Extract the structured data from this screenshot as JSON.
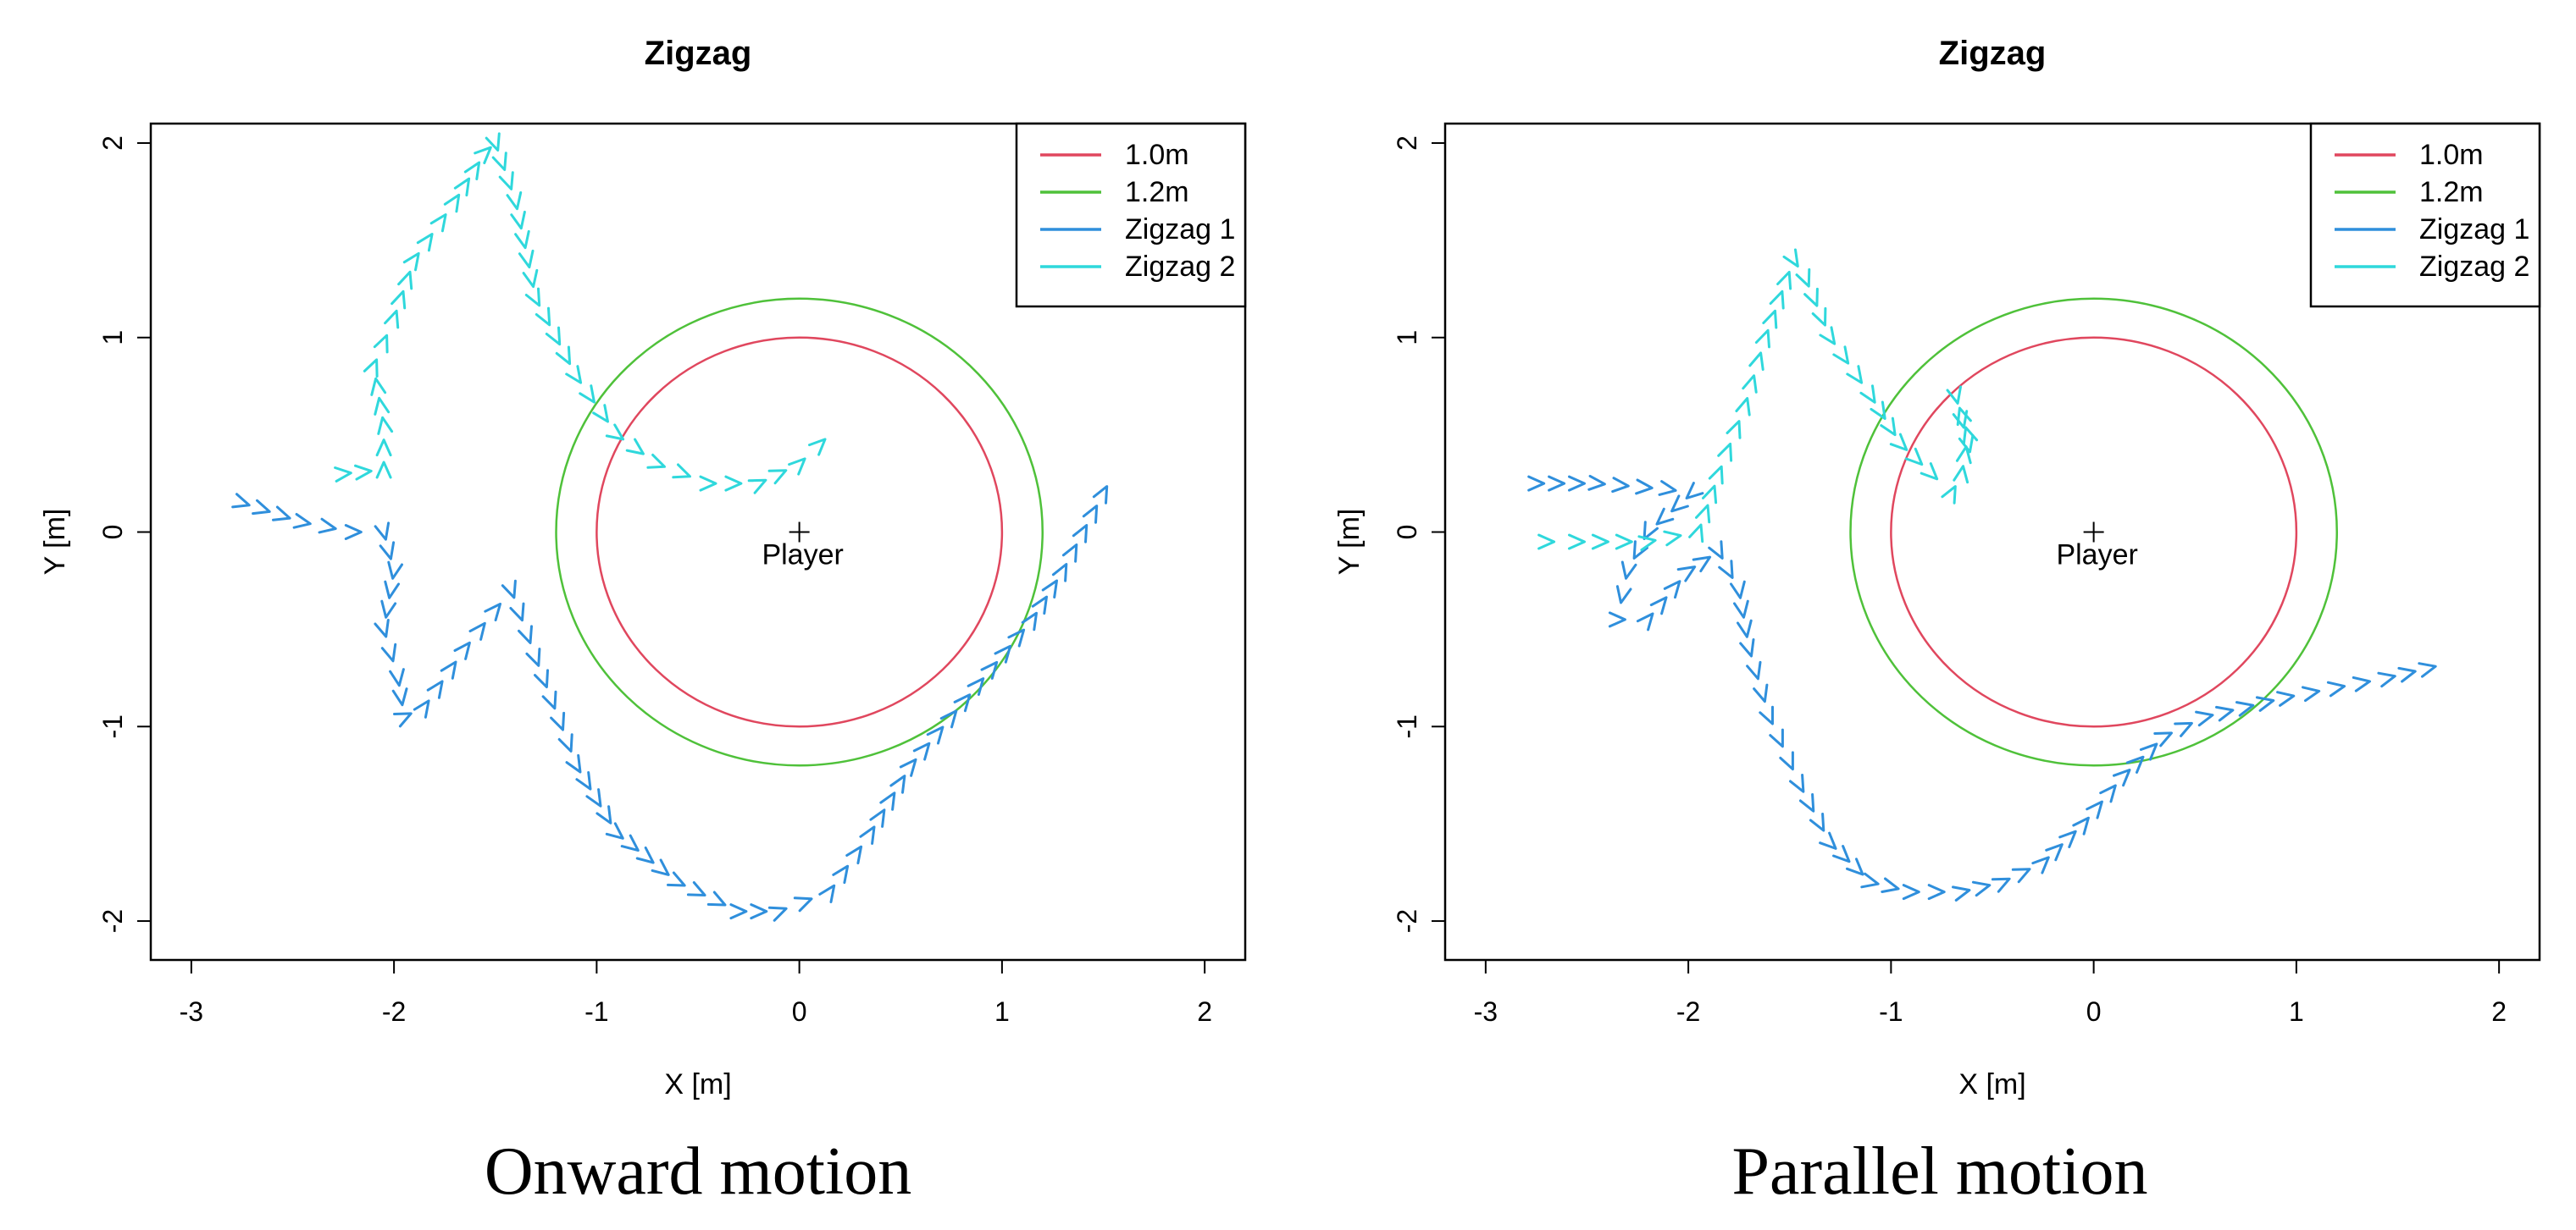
{
  "colors": {
    "c10": "#e0475e",
    "c12": "#4fc13a",
    "z1": "#2f8fdc",
    "z2": "#2fd8dc"
  },
  "chart_data": [
    {
      "type": "line",
      "title": "Zigzag",
      "caption": "Onward motion",
      "xlabel": "X [m]",
      "ylabel": "Y [m]",
      "xlim": [
        -3.2,
        2.2
      ],
      "ylim": [
        -2.2,
        2.1
      ],
      "xticks": [
        -3,
        -2,
        -1,
        0,
        1,
        2
      ],
      "yticks": [
        -2,
        -1,
        0,
        1,
        2
      ],
      "player": {
        "label": "Player",
        "x": 0,
        "y": 0
      },
      "legend_position": "top-right",
      "legend": [
        "1.0m",
        "1.2m",
        "Zigzag 1",
        "Zigzag 2"
      ],
      "circles": [
        {
          "name": "1.0m",
          "radius": 1.0,
          "color": "#e0475e"
        },
        {
          "name": "1.2m",
          "radius": 1.2,
          "color": "#4fc13a"
        }
      ],
      "series": [
        {
          "name": "Zigzag 1",
          "color": "#2f8fdc",
          "x": [
            -2.75,
            -2.45,
            -2.2,
            -2.05,
            -2.0,
            -2.05,
            -1.98,
            -1.95,
            -1.95,
            -1.85,
            -1.65,
            -1.5,
            -1.42,
            -1.3,
            -1.1,
            -0.9,
            -0.6,
            -0.3,
            -0.1,
            0.15,
            0.35,
            0.55,
            0.75,
            0.95,
            1.15,
            1.3,
            1.5
          ],
          "y": [
            0.15,
            0.05,
            0.0,
            0.0,
            -0.2,
            -0.5,
            -0.75,
            -0.95,
            -0.95,
            -0.9,
            -0.6,
            -0.4,
            -0.3,
            -0.65,
            -1.2,
            -1.55,
            -1.8,
            -1.95,
            -1.95,
            -1.85,
            -1.55,
            -1.2,
            -0.95,
            -0.7,
            -0.45,
            -0.2,
            0.2
          ]
        },
        {
          "name": "Zigzag 2",
          "color": "#2fd8dc",
          "x": [
            -2.25,
            -2.05,
            -2.05,
            -2.1,
            -2.0,
            -1.9,
            -1.7,
            -1.55,
            -1.5,
            -1.4,
            -1.3,
            -1.1,
            -0.9,
            -0.7,
            -0.45,
            -0.2,
            0.0,
            0.1
          ],
          "y": [
            0.3,
            0.32,
            0.55,
            0.85,
            1.1,
            1.4,
            1.7,
            1.95,
            2.0,
            1.7,
            1.2,
            0.8,
            0.5,
            0.35,
            0.25,
            0.25,
            0.35,
            0.45
          ]
        }
      ]
    },
    {
      "type": "line",
      "title": "Zigzag",
      "caption": "Parallel motion",
      "xlabel": "X [m]",
      "ylabel": "Y [m]",
      "xlim": [
        -3.2,
        2.2
      ],
      "ylim": [
        -2.2,
        2.1
      ],
      "xticks": [
        -3,
        -2,
        -1,
        0,
        1,
        2
      ],
      "yticks": [
        -2,
        -1,
        0,
        1,
        2
      ],
      "player": {
        "label": "Player",
        "x": 0,
        "y": 0
      },
      "legend_position": "top-right",
      "legend": [
        "1.0m",
        "1.2m",
        "Zigzag 1",
        "Zigzag 2"
      ],
      "circles": [
        {
          "name": "1.0m",
          "radius": 1.0,
          "color": "#e0475e"
        },
        {
          "name": "1.2m",
          "radius": 1.2,
          "color": "#4fc13a"
        }
      ],
      "series": [
        {
          "name": "Zigzag 1",
          "color": "#2f8fdc",
          "x": [
            -2.75,
            -2.45,
            -2.1,
            -1.98,
            -2.2,
            -2.3,
            -2.35,
            -2.2,
            -2.0,
            -1.85,
            -1.75,
            -1.7,
            -1.6,
            -1.45,
            -1.3,
            -1.1,
            -0.9,
            -0.65,
            -0.45,
            -0.25,
            -0.05,
            0.15,
            0.35,
            0.55,
            0.75,
            0.95,
            1.2,
            1.45,
            1.65
          ],
          "y": [
            0.25,
            0.25,
            0.22,
            0.2,
            0.0,
            -0.2,
            -0.45,
            -0.45,
            -0.2,
            -0.1,
            -0.3,
            -0.6,
            -0.95,
            -1.3,
            -1.6,
            -1.8,
            -1.85,
            -1.85,
            -1.8,
            -1.7,
            -1.5,
            -1.25,
            -1.05,
            -0.95,
            -0.9,
            -0.85,
            -0.8,
            -0.75,
            -0.7
          ]
        },
        {
          "name": "Zigzag 2",
          "color": "#2fd8dc",
          "x": [
            -2.7,
            -2.55,
            -2.2,
            -1.95,
            -1.85,
            -1.72,
            -1.62,
            -1.55,
            -1.48,
            -1.42,
            -1.3,
            -1.1,
            -0.95,
            -0.8,
            -0.7,
            -0.65,
            -0.62,
            -0.68,
            -0.62
          ],
          "y": [
            -0.05,
            -0.05,
            -0.05,
            0.0,
            0.3,
            0.65,
            1.0,
            1.2,
            1.4,
            1.3,
            1.0,
            0.7,
            0.45,
            0.3,
            0.2,
            0.3,
            0.5,
            0.7,
            0.45
          ]
        }
      ]
    }
  ]
}
